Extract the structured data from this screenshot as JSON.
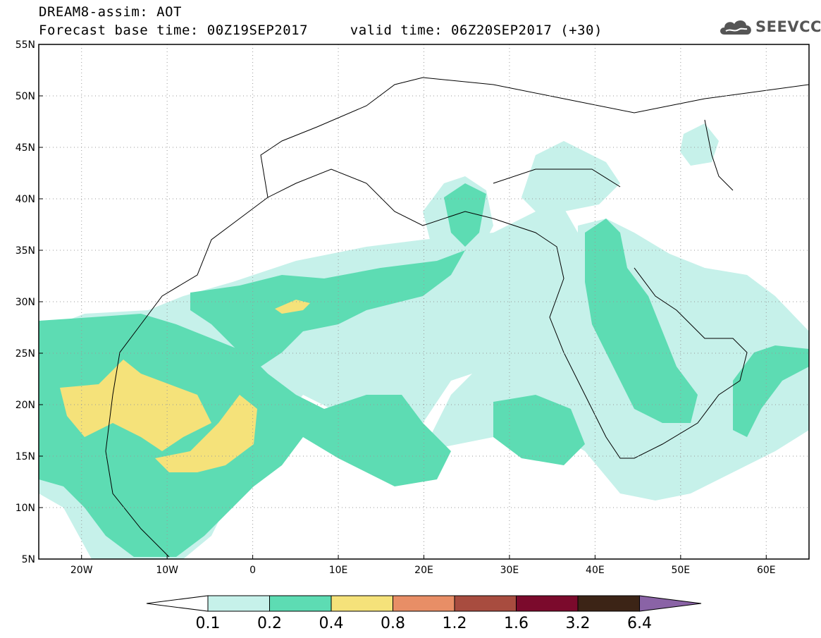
{
  "header": {
    "title": "DREAM8-assim: AOT",
    "base_time_label": "Forecast base time: 00Z19SEP2017",
    "valid_time_label": "valid time: 06Z20SEP2017 (+30)"
  },
  "logo": {
    "text": "SEEVCCC",
    "icon": "cloud-icon"
  },
  "map": {
    "lon_range": [
      -25,
      65
    ],
    "lat_range": [
      5,
      55
    ],
    "lat_labels": [
      "55N",
      "50N",
      "45N",
      "40N",
      "35N",
      "30N",
      "25N",
      "20N",
      "15N",
      "10N",
      "5N"
    ],
    "lon_labels": [
      "20W",
      "10W",
      "0",
      "10E",
      "20E",
      "30E",
      "40E",
      "50E",
      "60E"
    ],
    "grid": "dotted"
  },
  "colorbar": {
    "levels": [
      "0.1",
      "0.2",
      "0.4",
      "0.8",
      "1.2",
      "1.6",
      "3.2",
      "6.4"
    ],
    "colors": [
      "#ffffff",
      "#c6f1ea",
      "#5ddcb3",
      "#f5e27a",
      "#e88e66",
      "#a84c3f",
      "#7b0a2c",
      "#3c2416",
      "#8a63a6"
    ]
  }
}
